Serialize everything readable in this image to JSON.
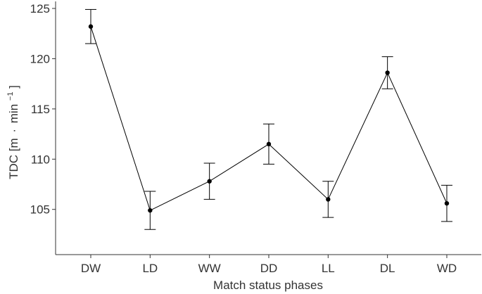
{
  "chart_data": {
    "type": "line",
    "title": "",
    "xlabel": "Match status phases",
    "ylabel_main": "TDC [m",
    "ylabel_dot": "·",
    "ylabel_unit": "min",
    "ylabel_exp": "−1",
    "ylabel_close": "]",
    "categories": [
      "DW",
      "LD",
      "WW",
      "DD",
      "LL",
      "DL",
      "WD"
    ],
    "series": [
      {
        "name": "TDC",
        "values": [
          123.2,
          104.9,
          107.8,
          111.5,
          106.0,
          118.6,
          105.6
        ],
        "error_low": [
          121.5,
          103.0,
          106.0,
          109.5,
          104.2,
          117.0,
          103.8
        ],
        "error_high": [
          124.9,
          106.8,
          109.6,
          113.5,
          107.8,
          120.2,
          107.4
        ]
      }
    ],
    "ylim": [
      100.5,
      125.7
    ],
    "yticks": [
      105,
      110,
      115,
      120,
      125
    ],
    "ytick_labels": [
      "105",
      "110",
      "115",
      "120",
      "125"
    ],
    "grid": false,
    "colors": {
      "line": "#000000",
      "axis": "#333333"
    }
  }
}
